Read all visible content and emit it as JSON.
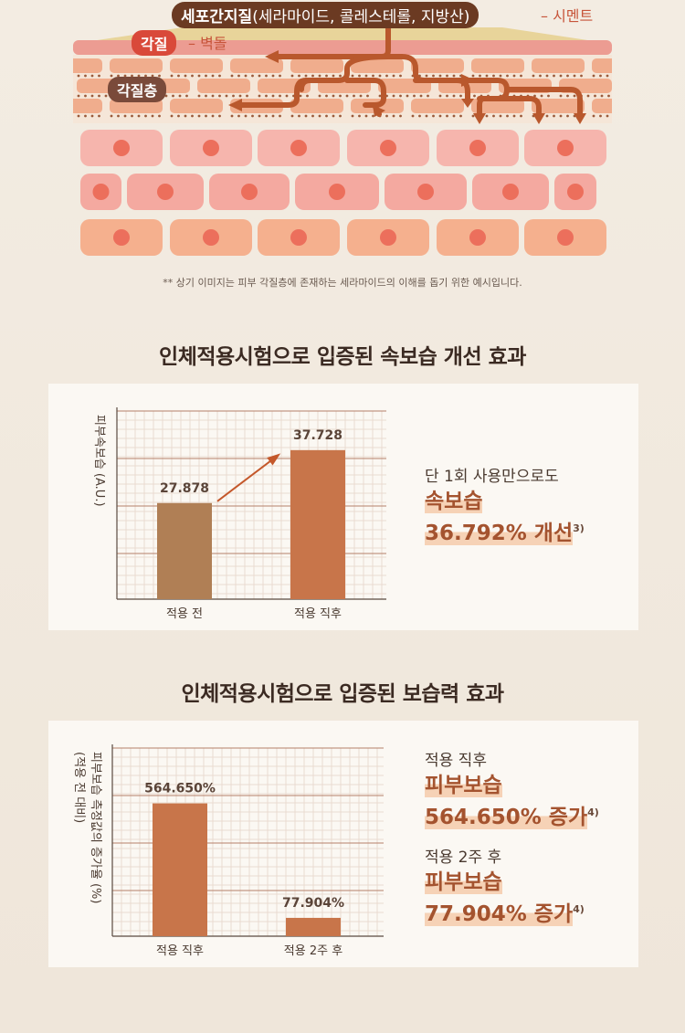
{
  "diagram": {
    "intercellular_label": "세포간지질",
    "intercellular_paren": "(세라마이드, 콜레스테롤, 지방산)",
    "intercellular_note": "– 시멘트",
    "keratin_label": "각질",
    "keratin_note": "– 벽돌",
    "stratum_label": "각질층",
    "disclaimer": "** 상기 이미지는 피부 각질층에 존재하는 세라마이드의 이해를 돕기 위한 예시입니다."
  },
  "section1": {
    "title": "인체적용시험으로 입증된 속보습 개선 효과",
    "side_line1": "단 1회 사용만으로도",
    "side_line2": "속보습",
    "side_line3": "36.792% 개선",
    "side_sup": "3)"
  },
  "section2": {
    "title": "인체적용시험으로 입증된 보습력 효과",
    "side_a_line1": "적용 직후",
    "side_a_line2": "피부보습",
    "side_a_line3": "564.650% 증가",
    "side_a_sup": "4)",
    "side_b_line1": "적용 2주 후",
    "side_b_line2": "피부보습",
    "side_b_line3": "77.904% 증가",
    "side_b_sup": "4)"
  },
  "chart_data": [
    {
      "type": "bar",
      "ylabel": "피부속보습 (A.U.)",
      "categories": [
        "적용 전",
        "적용 직후"
      ],
      "values": [
        27.878,
        37.728
      ],
      "value_labels": [
        "27.878",
        "37.728"
      ],
      "ylim": [
        10,
        45
      ],
      "grid": true,
      "bar_colors": [
        "#b07f55",
        "#c8754a"
      ]
    },
    {
      "type": "bar",
      "ylabel": "피부보습 측정값의 증가율 (%)",
      "ylabel_side": "(적용 전 대비)",
      "categories": [
        "적용 직후",
        "적용 2주 후"
      ],
      "values": [
        564.65,
        77.904
      ],
      "value_labels": [
        "564.650%",
        "77.904%"
      ],
      "ylim": [
        0,
        800
      ],
      "grid": true,
      "bar_colors": [
        "#c8754a",
        "#c8754a"
      ]
    }
  ]
}
